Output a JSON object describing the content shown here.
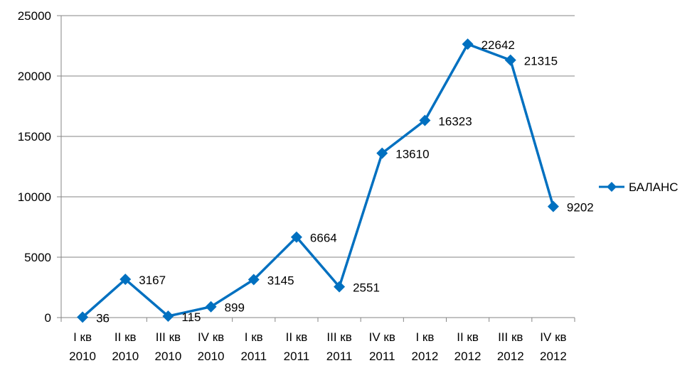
{
  "chart_data": {
    "type": "line",
    "title": "",
    "xlabel": "",
    "ylabel": "",
    "ylim": [
      0,
      25000
    ],
    "y_ticks": [
      0,
      5000,
      10000,
      15000,
      20000,
      25000
    ],
    "y_tick_labels": [
      "0",
      "5000",
      "10000",
      "15000",
      "20000",
      "25000"
    ],
    "grid": true,
    "legend_position": "right",
    "categories": [
      [
        "I кв",
        "2010"
      ],
      [
        "II кв",
        "2010"
      ],
      [
        "III кв",
        "2010"
      ],
      [
        "IV кв",
        "2010"
      ],
      [
        "I кв",
        "2011"
      ],
      [
        "II кв",
        "2011"
      ],
      [
        "III кв",
        "2011"
      ],
      [
        "IV кв",
        "2011"
      ],
      [
        "I кв",
        "2012"
      ],
      [
        "II кв",
        "2012"
      ],
      [
        "III кв",
        "2012"
      ],
      [
        "IV кв",
        "2012"
      ]
    ],
    "series": [
      {
        "name": "БАЛАНС",
        "color": "#0070C0",
        "marker": "diamond",
        "values": [
          36,
          3167,
          115,
          899,
          3145,
          6664,
          2551,
          13610,
          16323,
          22642,
          21315,
          9202
        ],
        "labels": [
          "36",
          "3167",
          "115",
          "899",
          "3145",
          "6664",
          "2551",
          "13610",
          "16323",
          "22642",
          "21315",
          "9202"
        ]
      }
    ]
  },
  "colors": {
    "series": "#0070C0",
    "grid": "#868686",
    "axis": "#868686",
    "text": "#000000"
  }
}
